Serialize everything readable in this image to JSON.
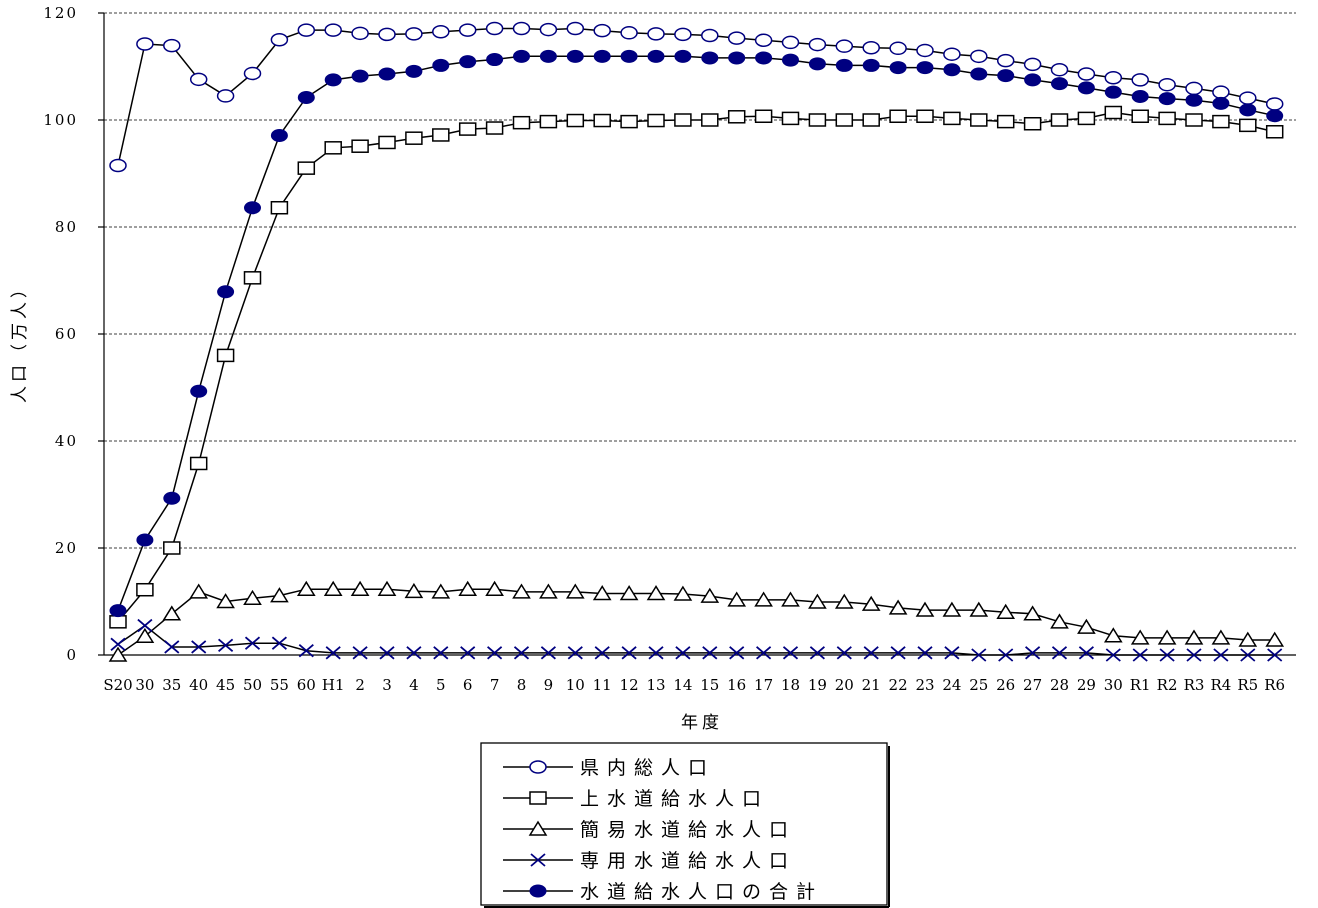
{
  "chart_data": {
    "type": "line",
    "categories": [
      "S20",
      "30",
      "35",
      "40",
      "45",
      "50",
      "55",
      "60",
      "H1",
      "2",
      "3",
      "4",
      "5",
      "6",
      "7",
      "8",
      "9",
      "10",
      "11",
      "12",
      "13",
      "14",
      "15",
      "16",
      "17",
      "18",
      "19",
      "20",
      "21",
      "22",
      "23",
      "24",
      "25",
      "26",
      "27",
      "28",
      "29",
      "30",
      "R1",
      "R2",
      "R3",
      "R4",
      "R5",
      "R6"
    ],
    "xlabel": "年度",
    "ylabel": "人口（万人）",
    "ylim": [
      0,
      120
    ],
    "yticks": [
      {
        "value": 0,
        "label": "0"
      },
      {
        "value": 20,
        "label": "20"
      },
      {
        "value": 40,
        "label": "40"
      },
      {
        "value": 60,
        "label": "60"
      },
      {
        "value": 80,
        "label": "80"
      },
      {
        "value": 100,
        "label": "100"
      },
      {
        "value": 120,
        "label": "120"
      }
    ],
    "grid": true,
    "legend_position": "bottom-center",
    "series": [
      {
        "name": "県内総人口",
        "marker": "open-circle",
        "color": "#000080",
        "values": [
          91.5,
          114.2,
          113.9,
          107.6,
          104.5,
          108.7,
          115.0,
          116.8,
          116.8,
          116.2,
          116.0,
          116.1,
          116.5,
          116.8,
          117.1,
          117.1,
          116.9,
          117.1,
          116.7,
          116.3,
          116.1,
          116.0,
          115.8,
          115.3,
          114.9,
          114.5,
          114.1,
          113.8,
          113.5,
          113.4,
          113.0,
          112.3,
          111.9,
          111.1,
          110.4,
          109.4,
          108.6,
          107.9,
          107.5,
          106.6,
          105.9,
          105.2,
          104.1,
          103.0
        ]
      },
      {
        "name": "上水道給水人口",
        "marker": "open-square",
        "color": "#000000",
        "values": [
          6.2,
          12.2,
          20.0,
          35.8,
          56.0,
          70.5,
          83.6,
          91.0,
          94.8,
          95.1,
          95.8,
          96.6,
          97.2,
          98.3,
          98.5,
          99.5,
          99.7,
          99.9,
          99.9,
          99.7,
          99.9,
          100.0,
          100.0,
          100.6,
          100.7,
          100.3,
          100.0,
          100.0,
          100.0,
          100.7,
          100.7,
          100.3,
          100.0,
          99.7,
          99.3,
          100.0,
          100.3,
          101.4,
          100.7,
          100.3,
          100.0,
          99.7,
          99.0,
          97.8
        ]
      },
      {
        "name": "簡易水道給水人口",
        "marker": "open-triangle",
        "color": "#000000",
        "values": [
          0.0,
          3.5,
          7.7,
          11.8,
          10.0,
          10.6,
          11.1,
          12.3,
          12.3,
          12.3,
          12.3,
          11.9,
          11.8,
          12.3,
          12.3,
          11.8,
          11.8,
          11.8,
          11.5,
          11.5,
          11.5,
          11.4,
          11.0,
          10.3,
          10.3,
          10.3,
          9.9,
          9.9,
          9.5,
          8.8,
          8.4,
          8.4,
          8.4,
          8.0,
          7.7,
          6.2,
          5.2,
          3.6,
          3.2,
          3.2,
          3.2,
          3.2,
          2.8,
          2.8
        ]
      },
      {
        "name": "専用水道給水人口",
        "marker": "cross",
        "color": "#000080",
        "values": [
          2.0,
          5.5,
          1.5,
          1.5,
          1.8,
          2.2,
          2.2,
          0.8,
          0.4,
          0.4,
          0.4,
          0.4,
          0.4,
          0.4,
          0.4,
          0.4,
          0.4,
          0.4,
          0.4,
          0.4,
          0.4,
          0.4,
          0.4,
          0.4,
          0.4,
          0.4,
          0.4,
          0.4,
          0.4,
          0.4,
          0.4,
          0.4,
          0.0,
          0.0,
          0.4,
          0.4,
          0.4,
          0.0,
          0.0,
          0.0,
          0.0,
          0.0,
          0.0,
          0.0
        ]
      },
      {
        "name": "水道給水人口の合計",
        "marker": "filled-circle",
        "color": "#000080",
        "values": [
          8.3,
          21.5,
          29.3,
          49.3,
          67.9,
          83.6,
          97.1,
          104.2,
          107.5,
          108.2,
          108.6,
          109.1,
          110.2,
          110.9,
          111.3,
          111.9,
          111.9,
          111.9,
          111.9,
          111.9,
          111.9,
          111.9,
          111.6,
          111.6,
          111.6,
          111.2,
          110.5,
          110.2,
          110.2,
          109.8,
          109.8,
          109.4,
          108.6,
          108.3,
          107.5,
          106.8,
          106.0,
          105.2,
          104.4,
          104.0,
          103.7,
          103.1,
          101.9,
          100.8
        ]
      }
    ]
  }
}
